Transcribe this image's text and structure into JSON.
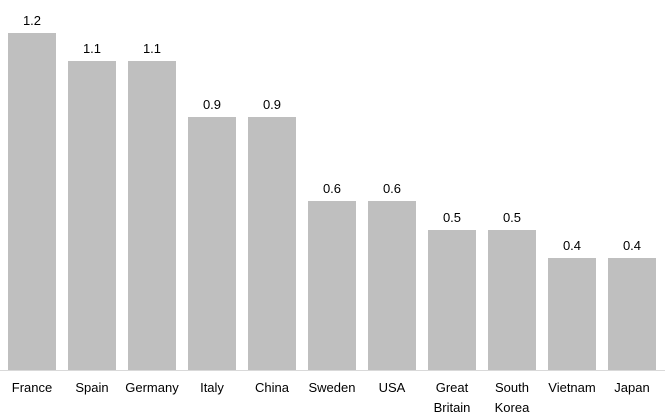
{
  "chart_data": {
    "type": "bar",
    "title": "",
    "xlabel": "",
    "ylabel": "",
    "categories": [
      "France",
      "Spain",
      "Germany",
      "Italy",
      "China",
      "Sweden",
      "USA",
      "Great Britain",
      "South Korea",
      "Vietnam",
      "Japan"
    ],
    "values": [
      1.2,
      1.1,
      1.1,
      0.9,
      0.9,
      0.6,
      0.6,
      0.5,
      0.5,
      0.4,
      0.4
    ],
    "data_labels": [
      "1.2",
      "1.1",
      "1.1",
      "0.9",
      "0.9",
      "0.6",
      "0.6",
      "0.5",
      "0.5",
      "0.4",
      "0.4"
    ],
    "ylim": [
      0,
      1.2
    ],
    "grid": false,
    "legend": false,
    "bar_color": "#bfbfbf",
    "axis_line_color": "#d9d9d9",
    "text_color": "#000000",
    "background_color": "#ffffff"
  }
}
